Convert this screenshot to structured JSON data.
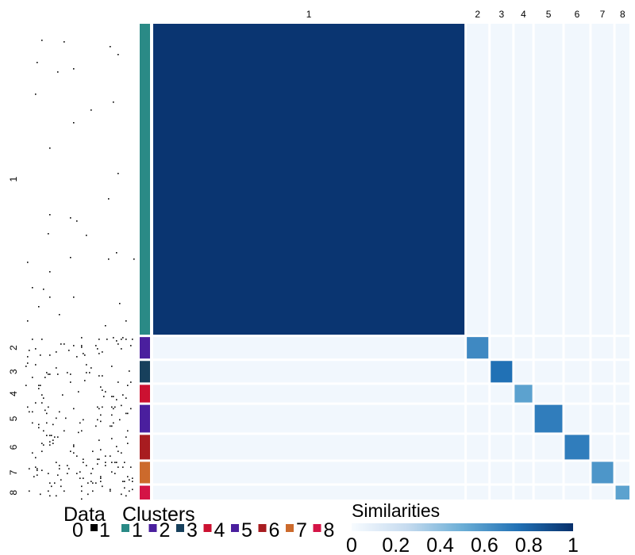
{
  "chart_data": {
    "type": "heatmap",
    "title": "",
    "clusters": [
      {
        "id": "1",
        "size": 405,
        "color": "#2a8a86"
      },
      {
        "id": "2",
        "size": 28,
        "color": "#4a1f9e"
      },
      {
        "id": "3",
        "size": 28,
        "color": "#17405c"
      },
      {
        "id": "4",
        "size": 23,
        "color": "#cc1131"
      },
      {
        "id": "5",
        "size": 36,
        "color": "#4a1f9e"
      },
      {
        "id": "6",
        "size": 32,
        "color": "#a81c20"
      },
      {
        "id": "7",
        "size": 28,
        "color": "#cc6a2c"
      },
      {
        "id": "8",
        "size": 18,
        "color": "#d41446"
      }
    ],
    "within_cluster_similarity": [
      0.98,
      0.65,
      0.75,
      0.55,
      0.7,
      0.7,
      0.6,
      0.55
    ],
    "data_matrix_values": [
      0,
      1
    ],
    "legends": {
      "data": {
        "title": "Data",
        "labels": [
          "0",
          "1"
        ],
        "colors": [
          "#ffffff",
          "#000000"
        ]
      },
      "clusters": {
        "title": "Clusters",
        "labels": [
          "1",
          "2",
          "3",
          "4",
          "5",
          "6",
          "7",
          "8"
        ]
      },
      "similarities": {
        "title": "Similarities",
        "ticks": [
          "0",
          "0.2",
          "0.4",
          "0.6",
          "0.8",
          "1"
        ],
        "range": [
          0,
          1
        ],
        "colors": [
          "#f7fbff",
          "#c6dbef",
          "#6baed6",
          "#2171b5",
          "#08306b"
        ]
      }
    }
  }
}
